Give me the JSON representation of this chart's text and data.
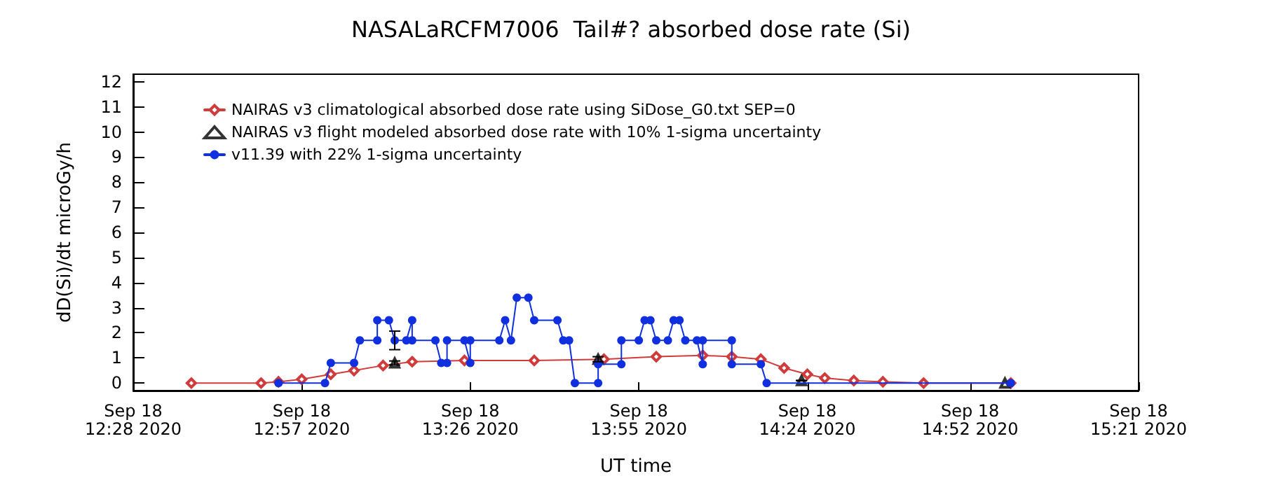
{
  "chart_data": {
    "type": "line",
    "title": "NASALaRCFM7006  Tail#? absorbed dose rate (Si)",
    "xlabel": "UT time",
    "ylabel": "dD(Si)/dt microGy/h",
    "xlim": [
      "2020-09-18T12:28",
      "2020-09-18T15:21"
    ],
    "xticks": [
      {
        "value": "2020-09-18T12:28",
        "label": "Sep 18\n12:28 2020"
      },
      {
        "value": "2020-09-18T12:57",
        "label": "Sep 18\n12:57 2020"
      },
      {
        "value": "2020-09-18T13:26",
        "label": "Sep 18\n13:26 2020"
      },
      {
        "value": "2020-09-18T13:55",
        "label": "Sep 18\n13:55 2020"
      },
      {
        "value": "2020-09-18T14:24",
        "label": "Sep 18\n14:24 2020"
      },
      {
        "value": "2020-09-18T14:52",
        "label": "Sep 18\n14:52 2020"
      },
      {
        "value": "2020-09-18T15:21",
        "label": "Sep 18\n15:21 2020"
      }
    ],
    "ylim": [
      -0.3,
      12.3
    ],
    "yticks": [
      0,
      1,
      2,
      3,
      4,
      5,
      6,
      7,
      8,
      9,
      10,
      11,
      12
    ],
    "grid": false,
    "legend": "top left",
    "series": [
      {
        "name": "NAIRAS v3 climatological absorbed dose rate using SiDose_G0.txt SEP=0",
        "color": "#d03c3c",
        "marker": "diamond",
        "x": [
          "2020-09-18T12:38",
          "2020-09-18T12:50",
          "2020-09-18T12:53",
          "2020-09-18T12:57",
          "2020-09-18T13:02",
          "2020-09-18T13:06",
          "2020-09-18T13:11",
          "2020-09-18T13:16",
          "2020-09-18T13:25",
          "2020-09-18T13:37",
          "2020-09-18T13:49",
          "2020-09-18T13:58",
          "2020-09-18T14:06",
          "2020-09-18T14:11",
          "2020-09-18T14:16",
          "2020-09-18T14:20",
          "2020-09-18T14:24",
          "2020-09-18T14:27",
          "2020-09-18T14:32",
          "2020-09-18T14:37",
          "2020-09-18T14:44",
          "2020-09-18T14:59"
        ],
        "values": [
          0,
          0,
          0.05,
          0.15,
          0.35,
          0.5,
          0.7,
          0.85,
          0.9,
          0.9,
          0.95,
          1.05,
          1.1,
          1.05,
          0.95,
          0.6,
          0.35,
          0.2,
          0.1,
          0.05,
          0,
          0
        ]
      },
      {
        "name": "NAIRAS v3 flight modeled absorbed dose rate with 10% 1-sigma uncertainty",
        "color": "#000000",
        "type": "scatter",
        "marker": "triangle",
        "x": [
          "2020-09-18T13:13",
          "2020-09-18T13:48",
          "2020-09-18T14:23",
          "2020-09-18T14:58"
        ],
        "values": [
          0.8,
          0.95,
          0.1,
          0
        ],
        "errors": [
          0.08,
          0.1,
          0.01,
          null
        ]
      },
      {
        "name": "v11.39 with 22% 1-sigma uncertainty",
        "color": "#1030e0",
        "marker": "circle",
        "x": [
          "2020-09-18T12:53",
          "2020-09-18T13:01",
          "2020-09-18T13:02",
          "2020-09-18T13:06",
          "2020-09-18T13:07",
          "2020-09-18T13:10",
          "2020-09-18T13:10",
          "2020-09-18T13:12",
          "2020-09-18T13:13",
          "2020-09-18T13:15",
          "2020-09-18T13:16",
          "2020-09-18T13:16",
          "2020-09-18T13:20",
          "2020-09-18T13:21",
          "2020-09-18T13:22",
          "2020-09-18T13:22",
          "2020-09-18T13:25",
          "2020-09-18T13:26",
          "2020-09-18T13:26",
          "2020-09-18T13:31",
          "2020-09-18T13:32",
          "2020-09-18T13:33",
          "2020-09-18T13:34",
          "2020-09-18T13:36",
          "2020-09-18T13:37",
          "2020-09-18T13:41",
          "2020-09-18T13:42",
          "2020-09-18T13:43",
          "2020-09-18T13:44",
          "2020-09-18T13:48",
          "2020-09-18T13:48",
          "2020-09-18T13:52",
          "2020-09-18T13:52",
          "2020-09-18T13:55",
          "2020-09-18T13:56",
          "2020-09-18T13:57",
          "2020-09-18T13:58",
          "2020-09-18T14:00",
          "2020-09-18T14:01",
          "2020-09-18T14:02",
          "2020-09-18T14:03",
          "2020-09-18T14:05",
          "2020-09-18T14:06",
          "2020-09-18T14:06",
          "2020-09-18T14:11",
          "2020-09-18T14:11",
          "2020-09-18T14:16",
          "2020-09-18T14:17",
          "2020-09-18T14:59"
        ],
        "values": [
          0,
          0,
          0.8,
          0.8,
          1.7,
          1.7,
          2.5,
          2.5,
          1.7,
          1.7,
          2.5,
          1.7,
          1.7,
          0.8,
          0.8,
          1.7,
          1.7,
          0.8,
          1.7,
          1.7,
          2.5,
          1.7,
          3.4,
          3.4,
          2.5,
          2.5,
          1.7,
          1.7,
          0,
          0,
          0.75,
          0.75,
          1.7,
          1.7,
          2.5,
          2.5,
          1.7,
          1.7,
          2.5,
          2.5,
          1.7,
          1.7,
          0.75,
          1.7,
          1.7,
          0.75,
          0.75,
          0,
          0
        ],
        "errors": [
          null,
          null,
          null,
          null,
          null,
          null,
          null,
          null,
          [
            1.33,
            2.07
          ],
          null,
          null,
          null,
          null,
          null,
          null,
          null,
          null,
          null,
          null,
          null,
          null,
          null,
          null,
          null,
          null,
          null,
          null,
          null,
          null,
          null,
          null,
          null,
          null,
          null,
          null,
          null,
          null,
          null,
          null,
          null,
          null,
          null,
          null,
          null,
          null,
          null,
          null,
          null,
          null
        ]
      }
    ]
  }
}
